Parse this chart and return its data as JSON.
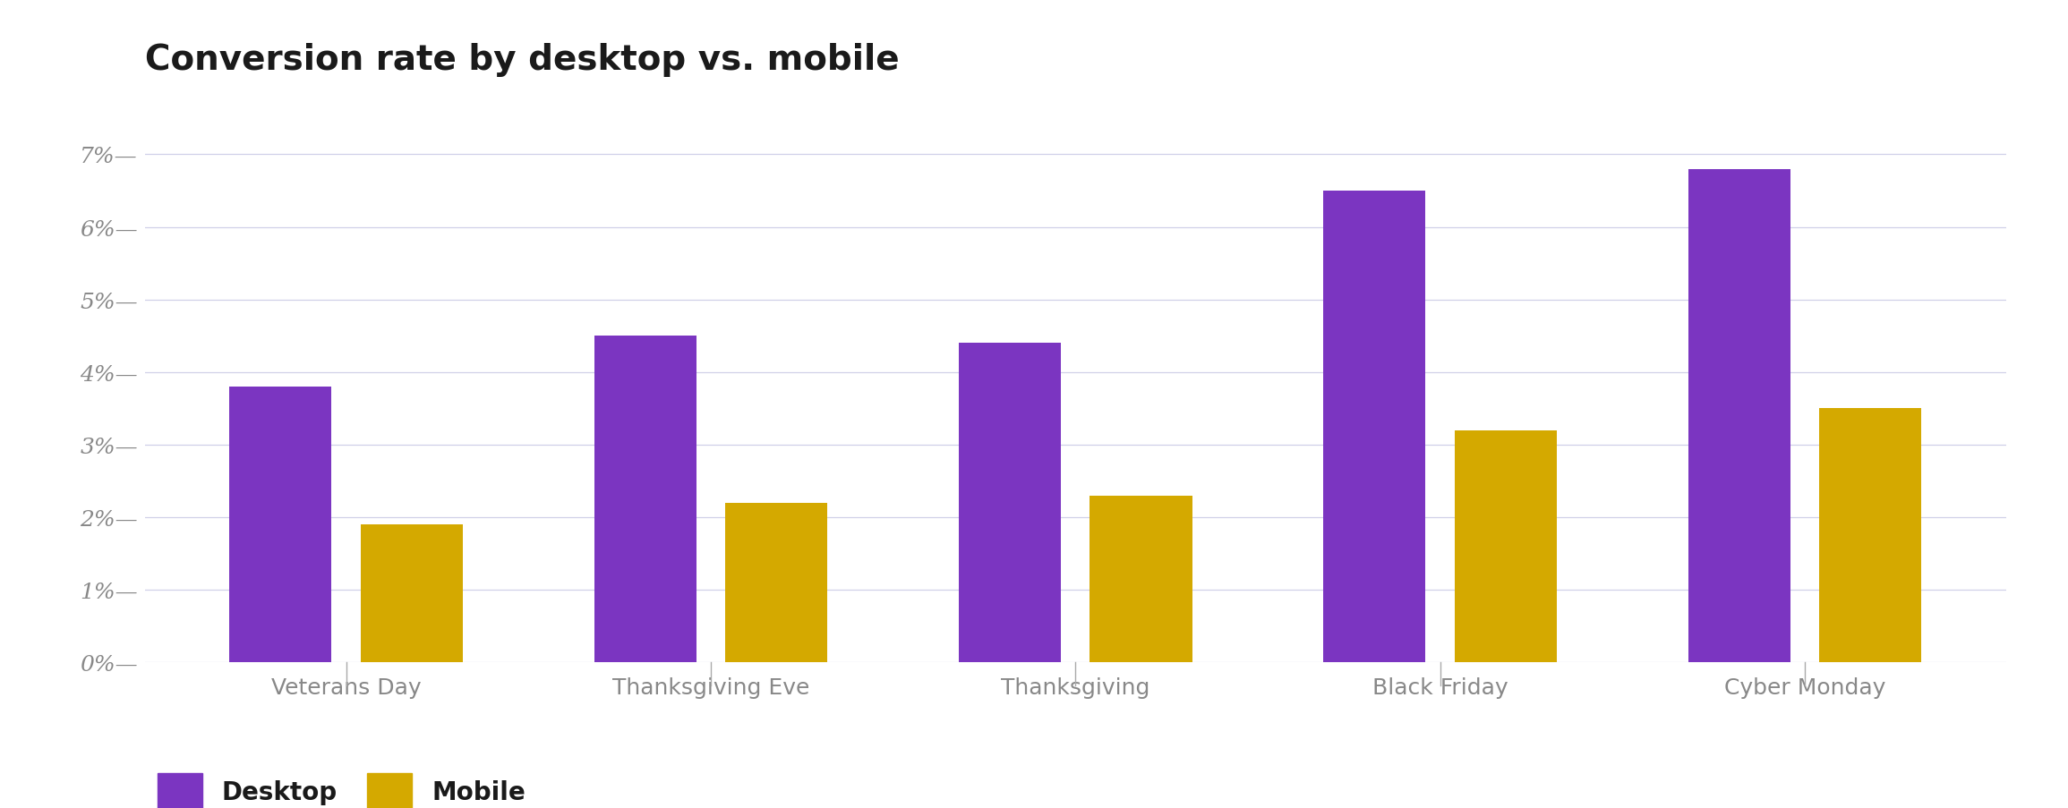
{
  "title": "Conversion rate by desktop vs. mobile",
  "categories": [
    "Veterans Day",
    "Thanksgiving Eve",
    "Thanksgiving",
    "Black Friday",
    "Cyber Monday"
  ],
  "desktop_values": [
    3.8,
    4.5,
    4.4,
    6.5,
    6.8
  ],
  "mobile_values": [
    1.9,
    2.2,
    2.3,
    3.2,
    3.5
  ],
  "desktop_color": "#7B35C1",
  "mobile_color": "#D4A900",
  "background_color": "#FFFFFF",
  "title_fontsize": 28,
  "tick_label_fontsize": 18,
  "legend_fontsize": 20,
  "ylim": [
    0,
    7.8
  ],
  "yticks": [
    0,
    1,
    2,
    3,
    4,
    5,
    6,
    7
  ],
  "bar_width": 0.28,
  "bar_gap": 0.08,
  "grid_color": "#D0D0E8",
  "ytick_color": "#888888",
  "xtick_color": "#888888",
  "legend_labels": [
    "Desktop",
    "Mobile"
  ]
}
